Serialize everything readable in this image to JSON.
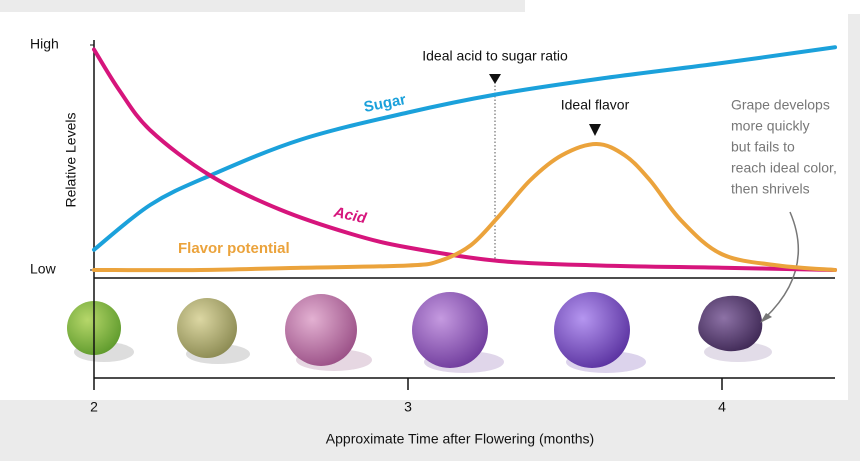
{
  "chart_data": {
    "type": "line",
    "y_label": "Relative Levels",
    "x_label": "Approximate Time after Flowering (months)",
    "xlim": [
      2,
      4.37
    ],
    "xticks": [
      2,
      3,
      4
    ],
    "ylim": [
      0,
      1
    ],
    "yticks": [
      {
        "value": 0,
        "label": "Low"
      },
      {
        "value": 1,
        "label": "High"
      }
    ],
    "series": [
      {
        "name": "Sugar",
        "color": "#1ba1db",
        "x": [
          2.0,
          2.18,
          2.37,
          2.66,
          3.0,
          3.28,
          3.61,
          4.0,
          4.36
        ],
        "values": [
          0.09,
          0.29,
          0.42,
          0.58,
          0.7,
          0.78,
          0.85,
          0.92,
          0.99
        ]
      },
      {
        "name": "Acid",
        "color": "#d6157c",
        "x": [
          2.0,
          2.08,
          2.18,
          2.37,
          2.59,
          2.82,
          3.0,
          3.29,
          3.61,
          4.0,
          4.36
        ],
        "values": [
          0.98,
          0.8,
          0.62,
          0.42,
          0.27,
          0.16,
          0.1,
          0.04,
          0.02,
          0.01,
          0.0
        ]
      },
      {
        "name": "Flavor potential",
        "color": "#eba33c",
        "x": [
          2.0,
          2.34,
          2.66,
          3.0,
          3.1,
          3.2,
          3.29,
          3.39,
          3.49,
          3.6,
          3.69,
          3.77,
          3.87,
          4.0,
          4.18,
          4.36
        ],
        "values": [
          0.0,
          0.0,
          0.01,
          0.02,
          0.04,
          0.11,
          0.24,
          0.4,
          0.51,
          0.56,
          0.51,
          0.4,
          0.22,
          0.07,
          0.02,
          0.0
        ]
      }
    ],
    "annotations": [
      "Ideal acid to sugar ratio",
      "Ideal flavor",
      [
        "Grape develops",
        "more quickly",
        "but fails to",
        "reach ideal color,",
        "then shrivels"
      ]
    ]
  }
}
